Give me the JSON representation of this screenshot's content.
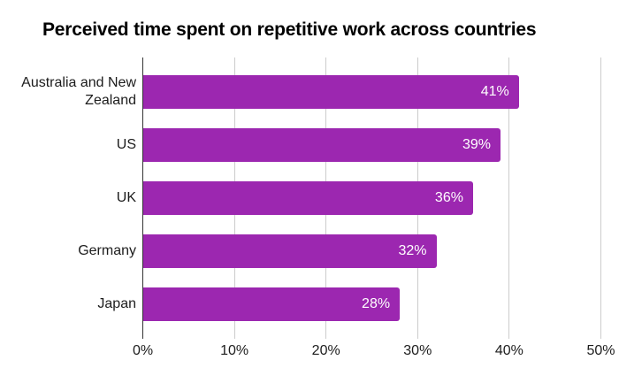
{
  "title": "Perceived time spent on repetitive work across countries",
  "chart_data": {
    "type": "bar",
    "orientation": "horizontal",
    "title": "Perceived time spent on repetitive work across countries",
    "categories": [
      "Australia and New Zealand",
      "US",
      "UK",
      "Germany",
      "Japan"
    ],
    "values": [
      41,
      39,
      36,
      32,
      28
    ],
    "value_labels": [
      "41%",
      "39%",
      "36%",
      "32%",
      "28%"
    ],
    "xlabel": "",
    "ylabel": "",
    "x_ticks": [
      "0%",
      "10%",
      "20%",
      "30%",
      "40%",
      "50%"
    ],
    "xlim": [
      0,
      50
    ],
    "grid": "vertical-only",
    "legend": "none",
    "colors": {
      "bar": "#9c27b0",
      "baseline": "#333333",
      "gridline": "#cccccc",
      "value_label": "#ffffff",
      "axis_text": "#1c1c1c",
      "title_text": "#000000",
      "background": "#ffffff"
    }
  }
}
